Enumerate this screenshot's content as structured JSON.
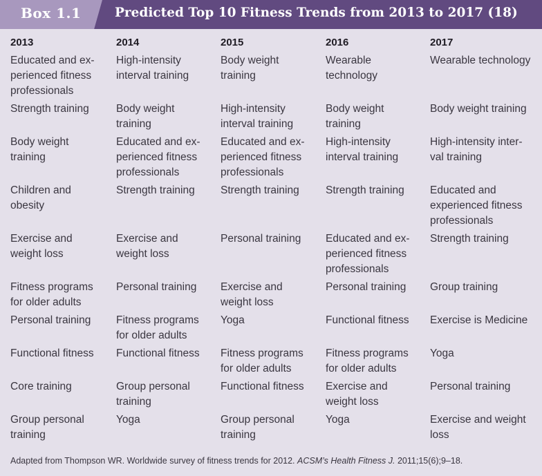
{
  "box": {
    "label": "Box 1.1",
    "title": "Predicted Top 10 Fitness Trends from 2013 to 2017 (18)"
  },
  "table": {
    "headers": [
      "2013",
      "2014",
      "2015",
      "2016",
      "2017"
    ],
    "rows": [
      [
        "Educated and ex-\nperienced fitness\nprofessionals",
        "High-intensity\ninterval training",
        "Body weight\ntraining",
        "Wearable\ntechnology",
        "Wearable technology"
      ],
      [
        "Strength training",
        "Body weight\ntraining",
        "High-intensity\ninterval training",
        "Body weight\ntraining",
        "Body weight training"
      ],
      [
        "Body weight\ntraining",
        "Educated and ex-\nperienced fitness\nprofessionals",
        "Educated and ex-\nperienced fitness\nprofessionals",
        "High-intensity\ninterval training",
        "High-intensity inter-\nval training"
      ],
      [
        "Children and\nobesity",
        "Strength training",
        "Strength training",
        "Strength training",
        "Educated and\nexperienced fitness\nprofessionals"
      ],
      [
        "Exercise and\nweight loss",
        "Exercise and\nweight loss",
        "Personal training",
        "Educated and ex-\nperienced fitness\nprofessionals",
        "Strength training"
      ],
      [
        "Fitness programs\nfor older adults",
        "Personal training",
        "Exercise and\nweight loss",
        "Personal training",
        "Group training"
      ],
      [
        "Personal training",
        "Fitness programs\nfor older adults",
        "Yoga",
        "Functional fitness",
        "Exercise is Medicine"
      ],
      [
        "Functional fitness",
        "Functional fitness",
        "Fitness programs\nfor older adults",
        "Fitness programs\nfor older adults",
        "Yoga"
      ],
      [
        "Core training",
        "Group personal\ntraining",
        "Functional fitness",
        "Exercise and\nweight loss",
        "Personal training"
      ],
      [
        "Group personal\ntraining",
        "Yoga",
        "Group personal\ntraining",
        "Yoga",
        "Exercise and weight\nloss"
      ]
    ]
  },
  "footnote": {
    "prefix": "Adapted from Thompson WR. Worldwide survey of fitness trends for 2012. ",
    "journal": "ACSM’s Health Fitness J.",
    "suffix": " 2011;15(6);9–18."
  },
  "colors": {
    "background": "#e4e0ea",
    "header": "#614a80",
    "tab": "#a898be"
  }
}
